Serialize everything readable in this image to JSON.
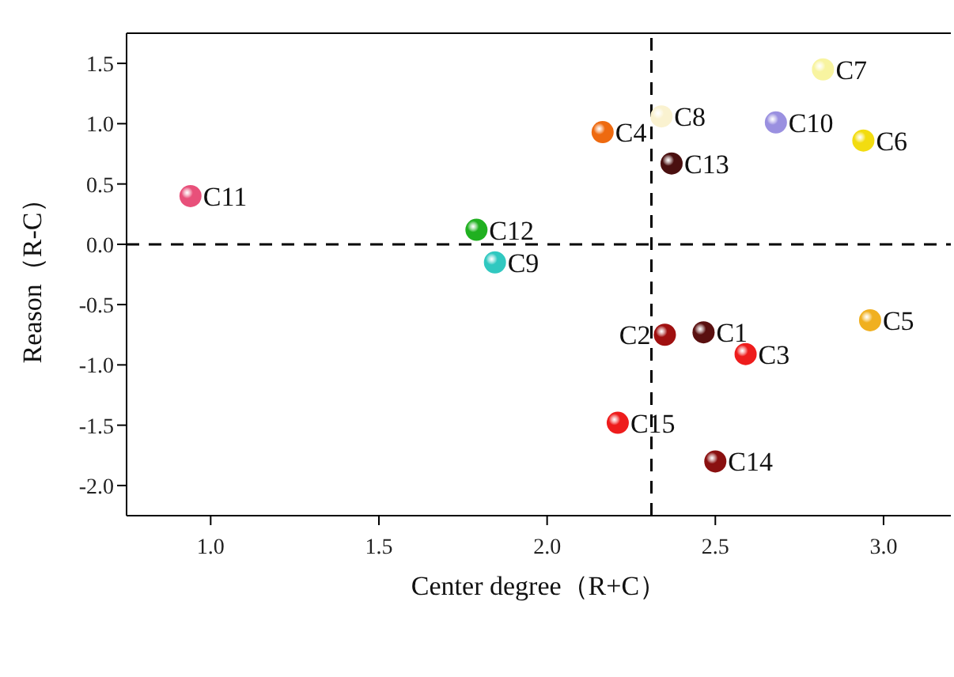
{
  "chart_data": {
    "type": "scatter",
    "xlabel": "Center degree（R+C）",
    "ylabel": "Reason（R-C）",
    "xlim": [
      0.75,
      3.2
    ],
    "xticks": [
      {
        "value": 1,
        "label": "1.0"
      },
      1.5,
      {
        "value": 2,
        "label": "2.0"
      },
      2.5,
      {
        "value": 3,
        "label": "3.0"
      }
    ],
    "ylim": [
      -2.25,
      1.75
    ],
    "yticks": [
      {
        "value": -2,
        "label": "-2.0"
      },
      -1.5,
      {
        "value": -1,
        "label": "-1.0"
      },
      -0.5,
      {
        "value": 0,
        "label": "0.0"
      },
      0.5,
      {
        "value": 1,
        "label": "1.0"
      },
      1.5
    ],
    "grid": false,
    "legend": false,
    "marker": "circle",
    "ref_lines": [
      {
        "axis": "x",
        "value": 2.31,
        "line_style": "dashed",
        "color": "#000000"
      },
      {
        "axis": "y",
        "value": 0,
        "line_style": "dashed",
        "color": "#000000"
      }
    ],
    "series": [
      {
        "name": "C1",
        "color": "#5a1010",
        "x": [
          2.465
        ],
        "values": [
          -0.73
        ]
      },
      {
        "name": "C2",
        "color": "#a01010",
        "x": [
          2.35
        ],
        "values": [
          -0.75
        ]
      },
      {
        "name": "C3",
        "color": "#ee1c1c",
        "x": [
          2.59
        ],
        "values": [
          -0.91
        ]
      },
      {
        "name": "C4",
        "color": "#ee6a10",
        "x": [
          2.165
        ],
        "values": [
          0.93
        ]
      },
      {
        "name": "C5",
        "color": "#f0b020",
        "x": [
          2.96
        ],
        "values": [
          -0.63
        ]
      },
      {
        "name": "C6",
        "color": "#f2dc10",
        "x": [
          2.94
        ],
        "values": [
          0.86
        ]
      },
      {
        "name": "C7",
        "color": "#f8f4a0",
        "x": [
          2.82
        ],
        "values": [
          1.45
        ]
      },
      {
        "name": "C8",
        "color": "#faf2d0",
        "x": [
          2.34
        ],
        "values": [
          1.06
        ]
      },
      {
        "name": "C9",
        "color": "#30c8c0",
        "x": [
          1.845
        ],
        "values": [
          -0.15
        ]
      },
      {
        "name": "C10",
        "color": "#9a90e0",
        "x": [
          2.68
        ],
        "values": [
          1.01
        ]
      },
      {
        "name": "C11",
        "color": "#e8507a",
        "x": [
          0.94
        ],
        "values": [
          0.4
        ]
      },
      {
        "name": "C12",
        "color": "#20b020",
        "x": [
          1.79
        ],
        "values": [
          0.12
        ]
      },
      {
        "name": "C13",
        "color": "#4a1010",
        "x": [
          2.37
        ],
        "values": [
          0.67
        ]
      },
      {
        "name": "C14",
        "color": "#8a1010",
        "x": [
          2.5
        ],
        "values": [
          -1.8
        ]
      },
      {
        "name": "C15",
        "color": "#ee1c1c",
        "x": [
          2.21
        ],
        "values": [
          -1.48
        ]
      }
    ]
  }
}
